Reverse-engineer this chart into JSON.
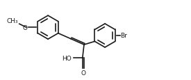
{
  "bg_color": "#ffffff",
  "line_color": "#1a1a1a",
  "line_width": 1.2,
  "font_size": 6.5,
  "labels": {
    "methoxy_O": "O",
    "methoxy_C": "CH₃",
    "COOH_H": "HO",
    "COOH_O": "O",
    "Br": "Br"
  },
  "figsize": [
    2.75,
    1.16
  ],
  "dpi": 100
}
